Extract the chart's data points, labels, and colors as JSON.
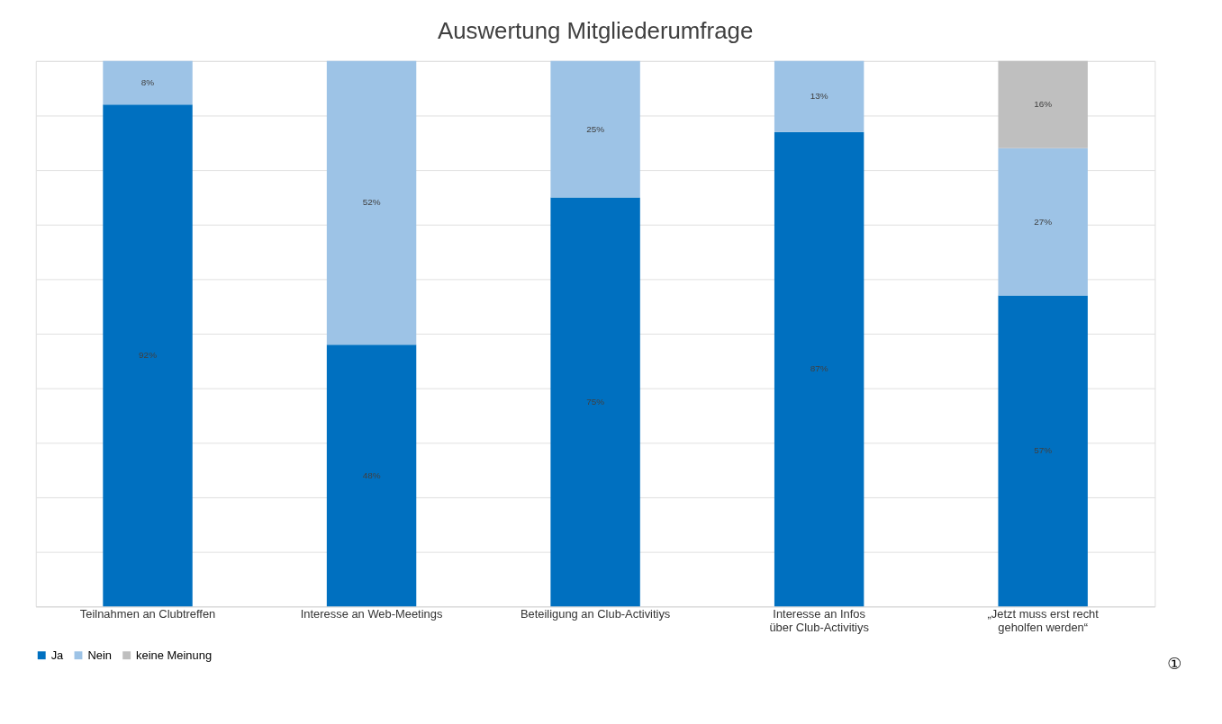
{
  "chart_data": {
    "type": "bar",
    "title": "Auswertung Mitgliederumfrage",
    "categories": [
      "Teilnahmen an Clubtreffen",
      "Interesse an Web-Meetings",
      "Beteiligung an Club-Activitiys",
      "Interesse an Infos\nüber Club-Activitiys",
      "„Jetzt muss erst recht\ngeholfen werden“"
    ],
    "stacked": true,
    "series": [
      {
        "name": "Ja",
        "color": "#0070c0",
        "values": [
          92,
          48,
          75,
          87,
          57
        ],
        "value_labels": [
          "92%",
          "48%",
          "75%",
          "87%",
          "57%"
        ]
      },
      {
        "name": "Nein",
        "color": "#9dc3e6",
        "values": [
          8,
          52,
          25,
          13,
          27
        ],
        "value_labels": [
          "8%",
          "52%",
          "25%",
          "13%",
          "27%"
        ]
      },
      {
        "name": "keine Meinung",
        "color": "#bfbfbf",
        "values": [
          null,
          null,
          null,
          null,
          16
        ],
        "value_labels": [
          null,
          null,
          null,
          null,
          "16%"
        ]
      }
    ],
    "ylim": [
      0,
      100
    ],
    "yticks": [
      {
        "value": 0,
        "label": null
      },
      {
        "value": 10,
        "label": null
      },
      {
        "value": 20,
        "label": null
      },
      {
        "value": 30,
        "label": null
      },
      {
        "value": 40,
        "label": null
      },
      {
        "value": 50,
        "label": null
      },
      {
        "value": 60,
        "label": null
      },
      {
        "value": 70,
        "label": null
      },
      {
        "value": 80,
        "label": null
      },
      {
        "value": 90,
        "label": null
      },
      {
        "value": 100,
        "label": null
      }
    ],
    "tick_labels": "x",
    "grid": "y",
    "legend": "bottom",
    "annotations": [
      "①"
    ]
  }
}
